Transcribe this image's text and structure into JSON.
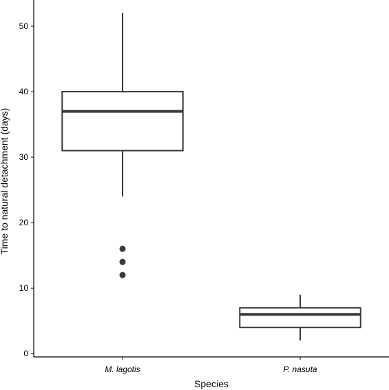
{
  "chart_data": {
    "type": "boxplot",
    "title": "",
    "xlabel": "Species",
    "ylabel": "Time to natural detachment (days)",
    "ylim": [
      -0.5,
      54
    ],
    "yticks": [
      0,
      10,
      20,
      30,
      40,
      50
    ],
    "grid": false,
    "categories": [
      "M. lagotis",
      "P. nasuta"
    ],
    "boxes": [
      {
        "category": "M. lagotis",
        "whisker_low": 24,
        "q1": 31,
        "median": 37,
        "q3": 40,
        "whisker_high": 52,
        "outliers": [
          12,
          14,
          16
        ]
      },
      {
        "category": "P. nasuta",
        "whisker_low": 2,
        "q1": 4,
        "median": 6,
        "q3": 7,
        "whisker_high": 9,
        "outliers": []
      }
    ],
    "colors": {
      "box_stroke": "#3a3a3a",
      "median": "#3a3a3a",
      "outlier": "#3a3a3a",
      "axis": "#000000",
      "background": "#ffffff"
    }
  }
}
